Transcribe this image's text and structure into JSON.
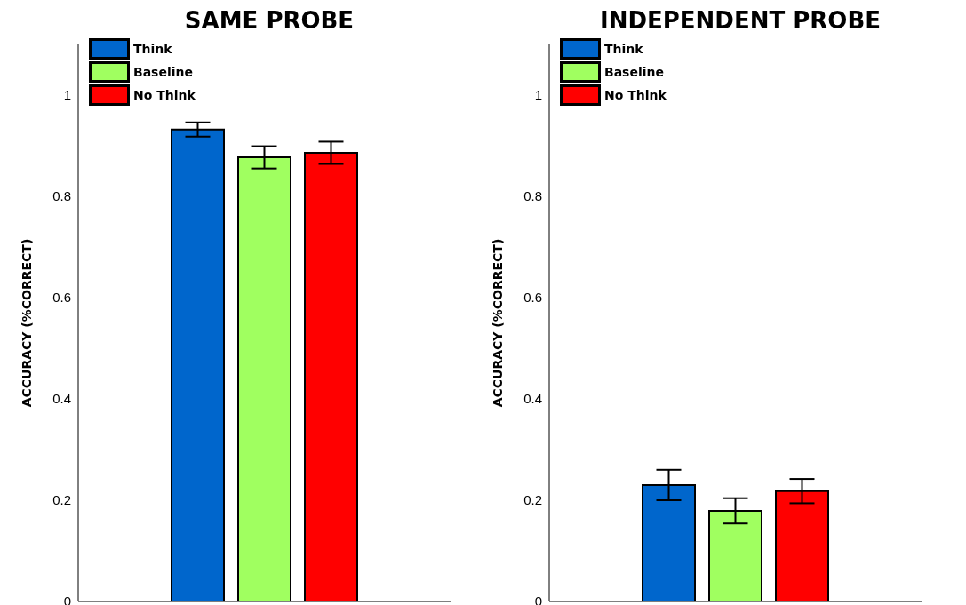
{
  "chart_data": [
    {
      "type": "bar",
      "title": "SAME PROBE",
      "ylabel": "ACCURACY (%CORRECT)",
      "categories": [
        null
      ],
      "ylim": [
        0,
        1.1
      ],
      "yticks": [
        0,
        0.2,
        0.4,
        0.6,
        0.8,
        1
      ],
      "grid": false,
      "legend": "top left",
      "series": [
        {
          "name": "Think",
          "color": "#0066cc",
          "values": [
            0.932
          ],
          "errors": [
            0.014
          ]
        },
        {
          "name": "Baseline",
          "color": "#a0ff60",
          "values": [
            0.877
          ],
          "errors": [
            0.022
          ]
        },
        {
          "name": "No Think",
          "color": "#ff0000",
          "values": [
            0.886
          ],
          "errors": [
            0.022
          ]
        }
      ]
    },
    {
      "type": "bar",
      "title": "INDEPENDENT PROBE",
      "ylabel": "ACCURACY (%CORRECT)",
      "categories": [
        null
      ],
      "ylim": [
        0,
        1.1
      ],
      "yticks": [
        0,
        0.2,
        0.4,
        0.6,
        0.8,
        1
      ],
      "grid": false,
      "legend": "top left",
      "series": [
        {
          "name": "Think",
          "color": "#0066cc",
          "values": [
            0.23
          ],
          "errors": [
            0.03
          ]
        },
        {
          "name": "Baseline",
          "color": "#a0ff60",
          "values": [
            0.179
          ],
          "errors": [
            0.025
          ]
        },
        {
          "name": "No Think",
          "color": "#ff0000",
          "values": [
            0.218
          ],
          "errors": [
            0.024
          ]
        }
      ]
    }
  ]
}
